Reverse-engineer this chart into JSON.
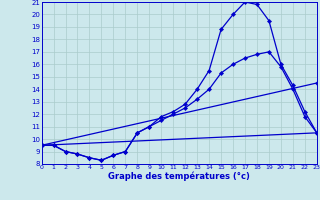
{
  "xlabel": "Graphe des températures (°c)",
  "background_color": "#cce8ec",
  "grid_color": "#aacccc",
  "line_color": "#0000cc",
  "xlim_min": 0,
  "xlim_max": 23,
  "ylim_min": 8,
  "ylim_max": 21,
  "xticks": [
    0,
    1,
    2,
    3,
    4,
    5,
    6,
    7,
    8,
    9,
    10,
    11,
    12,
    13,
    14,
    15,
    16,
    17,
    18,
    19,
    20,
    21,
    22,
    23
  ],
  "yticks": [
    8,
    9,
    10,
    11,
    12,
    13,
    14,
    15,
    16,
    17,
    18,
    19,
    20,
    21
  ],
  "series": [
    {
      "x": [
        0,
        1,
        2,
        3,
        4,
        5,
        6,
        7,
        8,
        9,
        10,
        11,
        12,
        13,
        14,
        15,
        16,
        17,
        18,
        19,
        20,
        21,
        22,
        23
      ],
      "y": [
        9.5,
        9.5,
        9.0,
        8.8,
        8.5,
        8.3,
        8.7,
        9.0,
        10.5,
        11.0,
        11.8,
        12.2,
        12.8,
        14.0,
        15.5,
        18.8,
        20.0,
        21.0,
        20.8,
        19.5,
        16.0,
        14.3,
        12.2,
        10.5
      ]
    },
    {
      "x": [
        0,
        1,
        2,
        3,
        4,
        5,
        6,
        7,
        8,
        9,
        10,
        11,
        12,
        13,
        14,
        15,
        16,
        17,
        18,
        19,
        20,
        21,
        22,
        23
      ],
      "y": [
        9.5,
        9.5,
        9.0,
        8.8,
        8.5,
        8.3,
        8.7,
        9.0,
        10.5,
        11.0,
        11.5,
        12.0,
        12.5,
        13.2,
        14.0,
        15.3,
        16.0,
        16.5,
        16.8,
        17.0,
        15.8,
        14.0,
        11.8,
        10.5
      ]
    },
    {
      "x": [
        0,
        23
      ],
      "y": [
        9.5,
        14.5
      ]
    },
    {
      "x": [
        0,
        23
      ],
      "y": [
        9.5,
        10.5
      ]
    }
  ]
}
